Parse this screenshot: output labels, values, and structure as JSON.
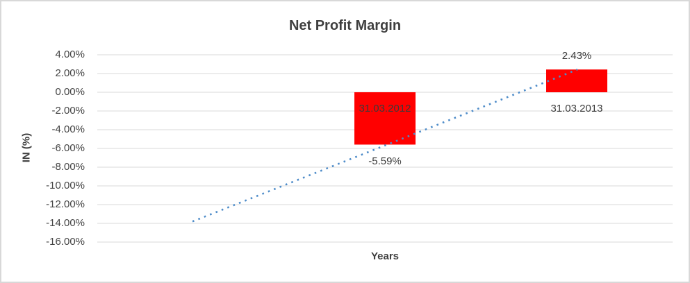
{
  "frame": {
    "background": "#ffffff",
    "border_color": "#d8d8d8"
  },
  "chart_data": {
    "type": "bar",
    "title": "Net Profit Margin",
    "xlabel": "Years",
    "ylabel": "IN (%)",
    "categories": [
      "31.03.2012",
      "31.03.2013"
    ],
    "values": [
      -5.59,
      2.43
    ],
    "data_labels": [
      "-5.59%",
      "2.43%"
    ],
    "ylim": [
      -16,
      4
    ],
    "y_tick_step": 2,
    "y_tick_labels": [
      "4.00%",
      "2.00%",
      "0.00%",
      "-2.00%",
      "-4.00%",
      "-6.00%",
      "-8.00%",
      "-10.00%",
      "-12.00%",
      "-14.00%",
      "-16.00%"
    ],
    "grid": true,
    "legend": "none",
    "bar_color": "#ff0000",
    "gridline_color": "#d9d9d9",
    "text_color": "#404040",
    "trendline": {
      "type": "linear",
      "line_style": "dotted",
      "color": "#4E8CC9",
      "start_value": -13.8,
      "end_value": 2.43
    }
  }
}
